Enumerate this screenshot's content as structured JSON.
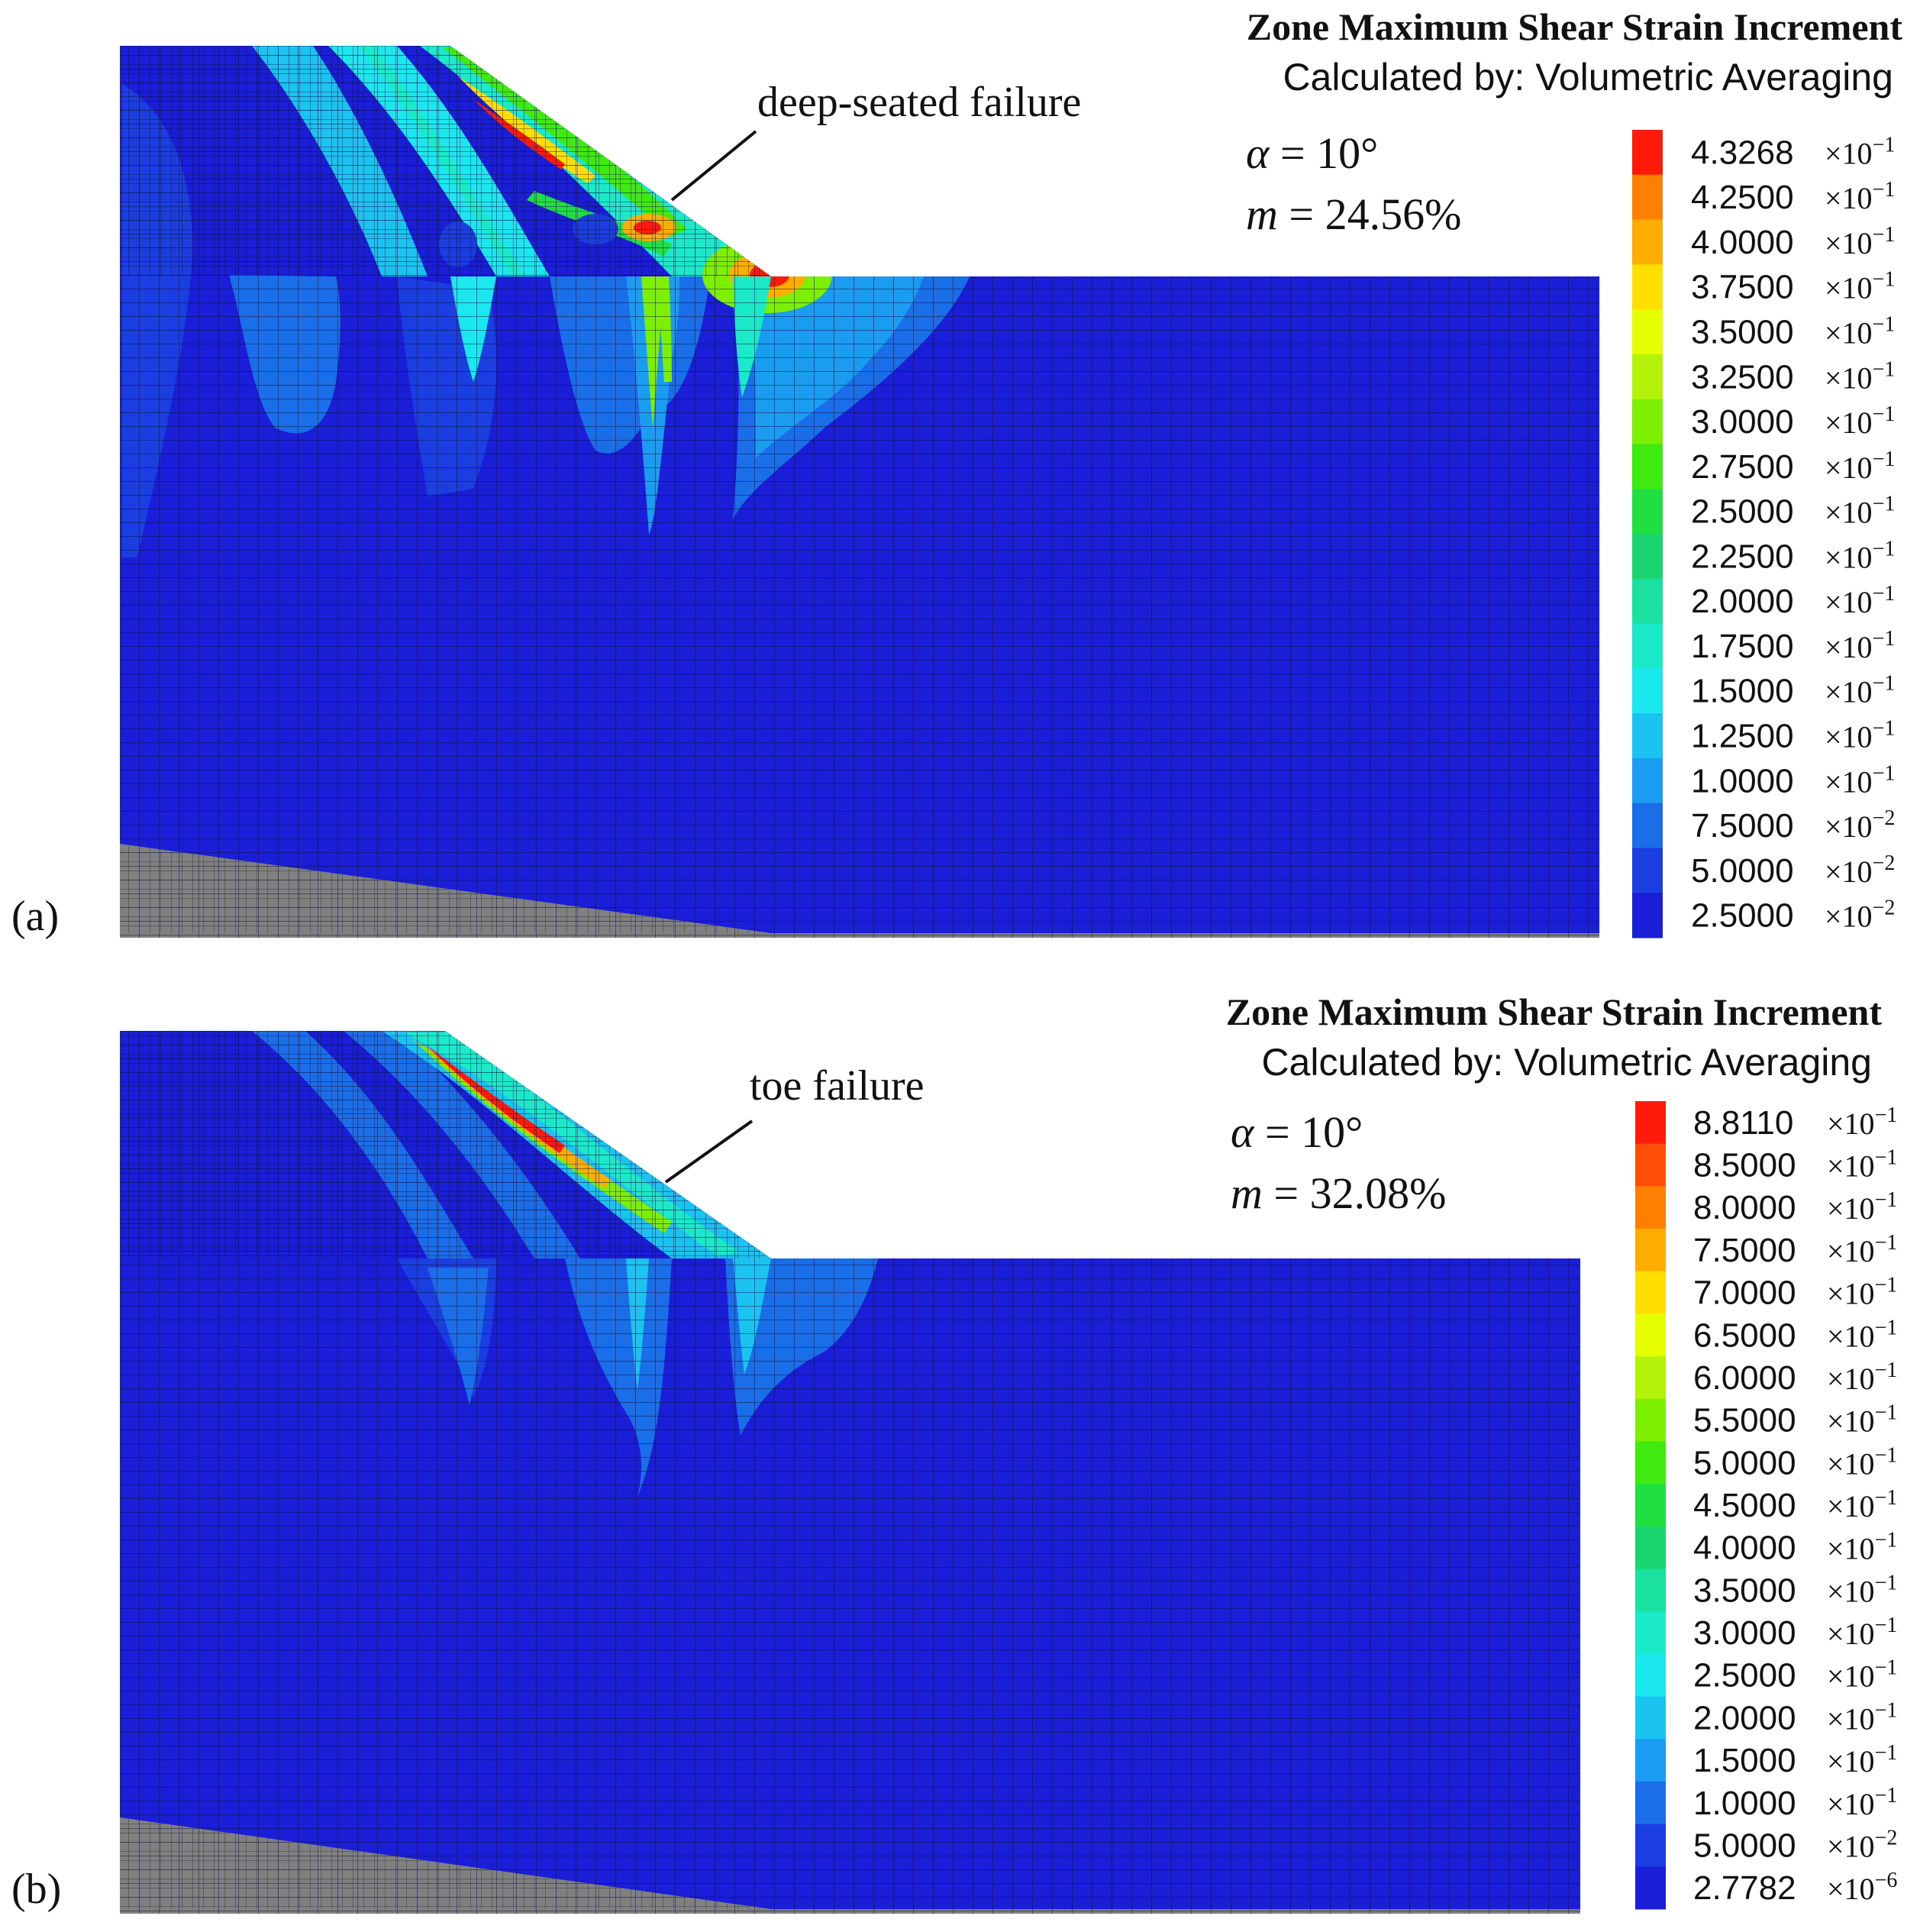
{
  "figure": {
    "panels": [
      {
        "label": "(a)",
        "title": "Zone Maximum Shear Strain Increment",
        "subtitle": "Calculated by: Volumetric Averaging",
        "annotation": "deep-seated failure",
        "alpha_text": " = 10°",
        "m_text": " = 24.56%",
        "alpha_symbol": "α",
        "m_symbol": "m",
        "legend": {
          "values": [
            "4.3268",
            "4.2500",
            "4.0000",
            "3.7500",
            "3.5000",
            "3.2500",
            "3.0000",
            "2.7500",
            "2.5000",
            "2.2500",
            "2.0000",
            "1.7500",
            "1.5000",
            "1.2500",
            "1.0000",
            "7.5000",
            "5.0000",
            "2.5000"
          ],
          "exponents": [
            "-1",
            "-1",
            "-1",
            "-1",
            "-1",
            "-1",
            "-1",
            "-1",
            "-1",
            "-1",
            "-1",
            "-1",
            "-1",
            "-1",
            "-1",
            "-2",
            "-2",
            "-2"
          ]
        }
      },
      {
        "label": "(b)",
        "title": "Zone Maximum Shear Strain Increment",
        "subtitle": "Calculated by: Volumetric Averaging",
        "annotation": "toe failure",
        "alpha_text": " = 10°",
        "m_text": " = 32.08%",
        "alpha_symbol": "α",
        "m_symbol": "m",
        "legend": {
          "values": [
            "8.8110",
            "8.5000",
            "8.0000",
            "7.5000",
            "7.0000",
            "6.5000",
            "6.0000",
            "5.5000",
            "5.0000",
            "4.5000",
            "4.0000",
            "3.5000",
            "3.0000",
            "2.5000",
            "2.0000",
            "1.5000",
            "1.0000",
            "5.0000",
            "2.7782"
          ],
          "exponents": [
            "-1",
            "-1",
            "-1",
            "-1",
            "-1",
            "-1",
            "-1",
            "-1",
            "-1",
            "-1",
            "-1",
            "-1",
            "-1",
            "-1",
            "-1",
            "-1",
            "-1",
            "-2",
            "-6"
          ]
        }
      }
    ],
    "multiplier_text": "×10",
    "colors": {
      "background_blue": "#1a1ed6",
      "bedrock_gray": "#808080",
      "mesh_line": "#0a0a40",
      "scale": [
        "#ff1a0a",
        "#ff4d0a",
        "#ff7f00",
        "#ffae00",
        "#ffdf00",
        "#e6ff00",
        "#b4f20a",
        "#7cf000",
        "#3fea10",
        "#1fe040",
        "#1ad470",
        "#1ae0a0",
        "#1aeac8",
        "#1ae8ee",
        "#1ac3f0",
        "#1a9cf0",
        "#1a6ee8",
        "#1a3ee0",
        "#1a1ed6"
      ]
    }
  }
}
